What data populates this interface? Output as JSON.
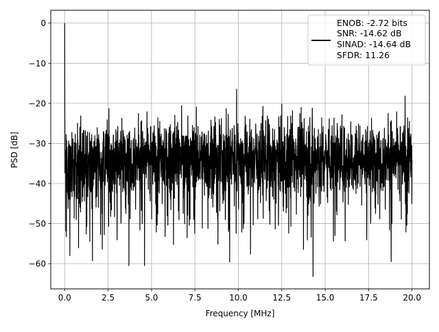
{
  "chart_data": {
    "type": "line",
    "xlabel": "Frequency [MHz]",
    "ylabel": "PSD [dB]",
    "xlim": [
      -0.8,
      21.0
    ],
    "ylim": [
      -66.3,
      3.2
    ],
    "xticks": [
      0.0,
      2.5,
      5.0,
      7.5,
      10.0,
      12.5,
      15.0,
      17.5,
      20.0
    ],
    "xtick_labels": [
      "0.0",
      "2.5",
      "5.0",
      "7.5",
      "10.0",
      "12.5",
      "15.0",
      "17.5",
      "20.0"
    ],
    "yticks": [
      0,
      -10,
      -20,
      -30,
      -40,
      -50,
      -60
    ],
    "ytick_labels": [
      "0",
      "−10",
      "−20",
      "−30",
      "−40",
      "−50",
      "−60"
    ],
    "grid": true,
    "legend_position": "top-right",
    "series": [
      {
        "color": "#000000",
        "noise_floor_mean_db": -33.5,
        "noise_envelope_upper_db": -21,
        "noise_envelope_lower_db": -48,
        "peak_x": 0.0,
        "peak_y": 0.0,
        "x_range": [
          0.0,
          20.0
        ],
        "notable_points": [
          {
            "x": 0.0,
            "y": 0.0
          },
          {
            "x": 0.3,
            "y": -58.0
          },
          {
            "x": 1.6,
            "y": -59.3
          },
          {
            "x": 3.7,
            "y": -60.5
          },
          {
            "x": 4.6,
            "y": -60.5
          },
          {
            "x": 9.5,
            "y": -59.6
          },
          {
            "x": 10.7,
            "y": -57.6
          },
          {
            "x": 14.3,
            "y": -63.2
          },
          {
            "x": 18.8,
            "y": -59.5
          },
          {
            "x": 9.9,
            "y": -16.5
          },
          {
            "x": 19.6,
            "y": -18.2
          }
        ]
      }
    ],
    "legend_lines": [
      "ENOB: -2.72 bits",
      "SNR: -14.62 dB",
      "SINAD: -14.64 dB",
      "SFDR: 11.26"
    ]
  }
}
